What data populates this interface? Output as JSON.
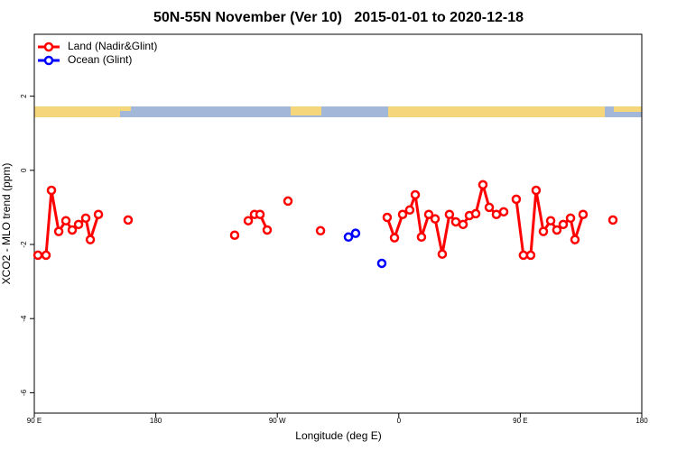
{
  "chart_data": {
    "type": "line",
    "title": "50N-55N November (Ver 10)   2015-01-01 to 2020-12-18",
    "x_label": "Longitude (deg E)",
    "y_label": "XCO2 - MLO trend (ppm)",
    "xlim": [
      90,
      540
    ],
    "ylim": [
      -6.55,
      3.67
    ],
    "xticks": [
      {
        "value": 90,
        "label": "90 E"
      },
      180,
      {
        "value": 270,
        "label": "90 W"
      },
      {
        "value": 360,
        "label": "0"
      },
      {
        "value": 450,
        "label": "90 E"
      },
      {
        "value": 540,
        "label": "180"
      }
    ],
    "yticks": [
      2,
      0,
      -2,
      -4,
      -6
    ],
    "legend": "top-left",
    "series": [
      {
        "name": "Land (Nadir&Glint)",
        "color": "#ff0000",
        "x": [
          92.7,
          98.7,
          102.7,
          108.1,
          113.4,
          118.1,
          122.8,
          128.1,
          131.5,
          137.5,
          null,
          159.5,
          null,
          238.4,
          null,
          248.5,
          253.1,
          257.2,
          262.5,
          null,
          277.9,
          null,
          302.0,
          null,
          351.4,
          356.8,
          362.8,
          368.1,
          372.2,
          376.8,
          382.2,
          386.9,
          392.2,
          397.5,
          402.2,
          407.6,
          412.3,
          417.0,
          422.3,
          427.0,
          432.3,
          437.7,
          null,
          447.0,
          452.3,
          457.7,
          461.7,
          467.1,
          472.5,
          477.1,
          481.8,
          487.2,
          490.5,
          496.5,
          null,
          518.6
        ],
        "values": [
          -2.29,
          -2.29,
          -0.54,
          -1.65,
          -1.36,
          -1.61,
          -1.46,
          -1.29,
          -1.87,
          -1.19,
          null,
          -1.34,
          null,
          -1.75,
          null,
          -1.36,
          -1.19,
          -1.19,
          -1.61,
          null,
          -0.83,
          null,
          -1.63,
          null,
          -1.27,
          -1.82,
          -1.19,
          -1.07,
          -0.66,
          -1.8,
          -1.19,
          -1.31,
          -2.26,
          -1.19,
          -1.39,
          -1.46,
          -1.22,
          -1.17,
          -0.39,
          -1.0,
          -1.19,
          -1.12,
          null,
          -0.78,
          -2.29,
          -2.29,
          -0.54,
          -1.65,
          -1.36,
          -1.61,
          -1.46,
          -1.29,
          -1.87,
          -1.19,
          null,
          -1.34
        ]
      },
      {
        "name": "Ocean (Glint)",
        "color": "#0000ff",
        "x": [
          322.7,
          328.0,
          null,
          347.4
        ],
        "values": [
          -1.8,
          -1.7,
          null,
          -2.51
        ]
      }
    ]
  }
}
